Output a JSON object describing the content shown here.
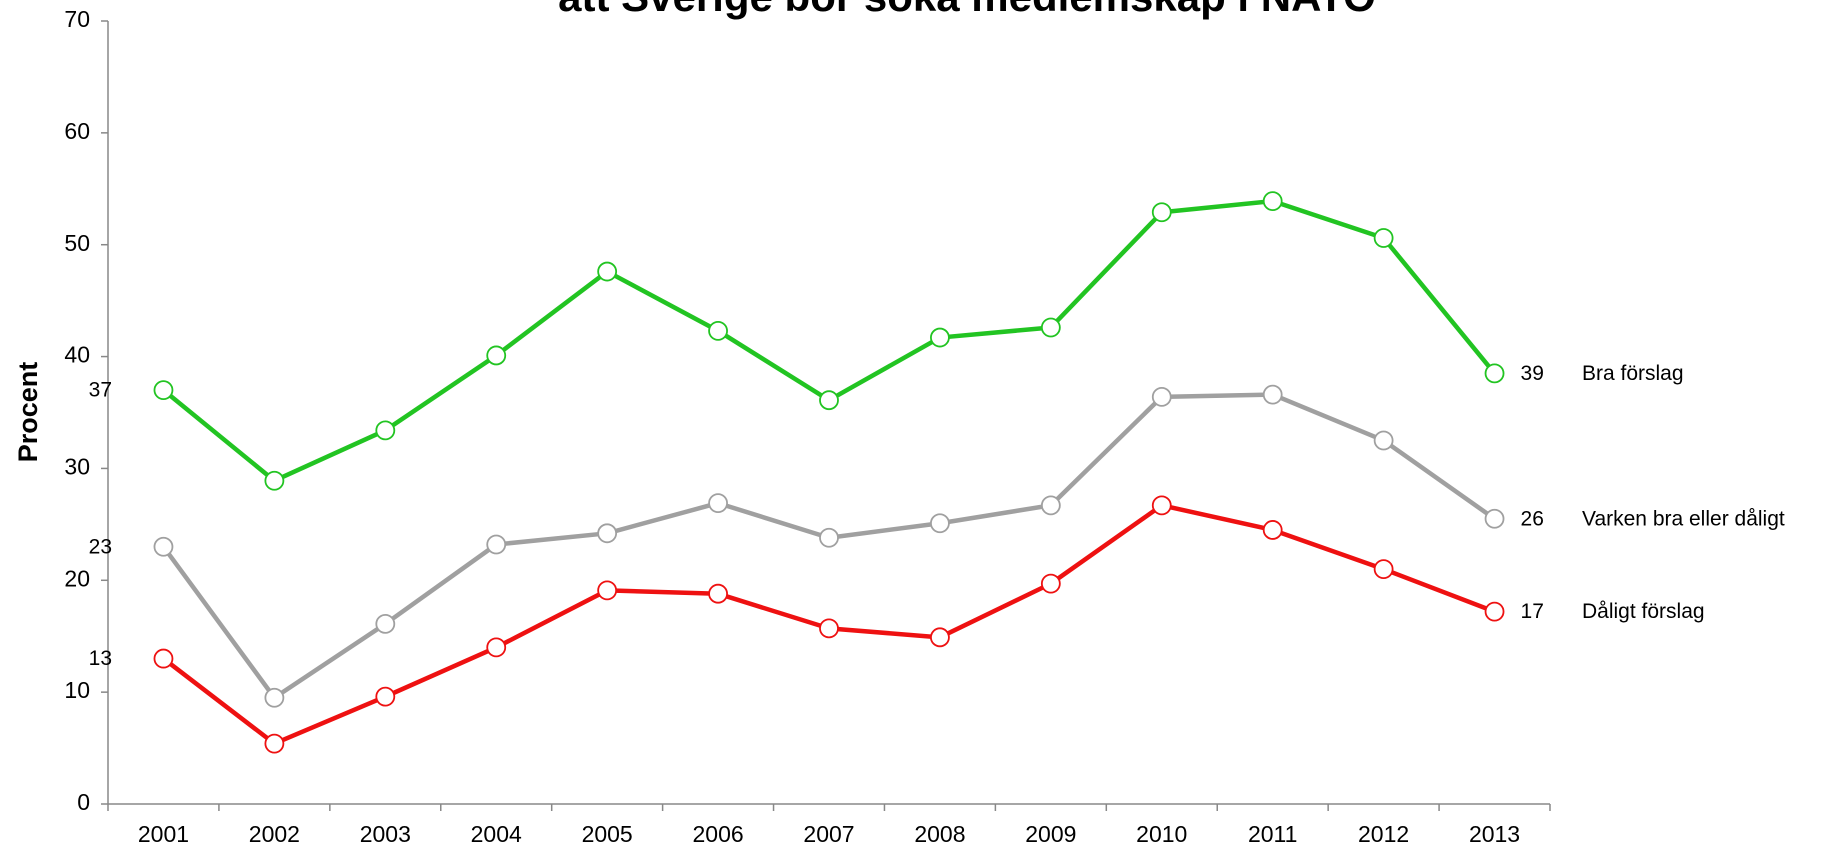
{
  "chart_data": {
    "type": "line",
    "title": "att Sverige bör söka medlemskap i NATO",
    "y_label": "Procent",
    "categories": [
      "2001",
      "2002",
      "2003",
      "2004",
      "2005",
      "2006",
      "2007",
      "2008",
      "2009",
      "2010",
      "2011",
      "2012",
      "2013"
    ],
    "ylim": [
      0,
      70
    ],
    "yticks": [
      0,
      10,
      20,
      30,
      40,
      50,
      60,
      70
    ],
    "grid": false,
    "series": [
      {
        "name": "Bra förslag",
        "color": "#22c422",
        "values": [
          37,
          28.9,
          33.4,
          40.1,
          47.6,
          42.3,
          36.1,
          41.7,
          42.6,
          52.9,
          53.9,
          50.6,
          38.5
        ],
        "value_labels": [
          "37",
          null,
          null,
          null,
          null,
          null,
          null,
          null,
          null,
          null,
          null,
          null,
          "39"
        ]
      },
      {
        "name": "Varken bra eller dåligt",
        "color": "#a0a0a0",
        "values": [
          23,
          9.5,
          16.1,
          23.2,
          24.2,
          26.9,
          23.8,
          25.1,
          26.7,
          36.4,
          36.6,
          32.5,
          25.5
        ],
        "value_labels": [
          "23",
          null,
          null,
          null,
          null,
          null,
          null,
          null,
          null,
          null,
          null,
          null,
          "26"
        ]
      },
      {
        "name": "Dåligt förslag",
        "color": "#ee1111",
        "values": [
          13,
          5.4,
          9.6,
          14.0,
          19.1,
          18.8,
          15.7,
          14.9,
          19.7,
          26.7,
          24.5,
          21.0,
          17.2
        ],
        "value_labels": [
          "13",
          null,
          null,
          null,
          null,
          null,
          null,
          null,
          null,
          null,
          null,
          null,
          "17"
        ]
      }
    ]
  }
}
